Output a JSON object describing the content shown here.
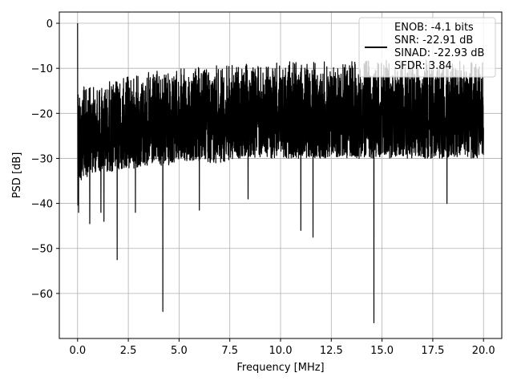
{
  "chart_data": {
    "type": "line",
    "title": "",
    "xlabel": "Frequency [MHz]",
    "ylabel": "PSD [dB]",
    "xlim": [
      -0.9,
      20.9
    ],
    "ylim": [
      -70,
      2.5
    ],
    "xticks": [
      0,
      2.5,
      5,
      7.5,
      10,
      12.5,
      15,
      17.5,
      20
    ],
    "xtick_labels": [
      "0.0",
      "2.5",
      "5.0",
      "7.5",
      "10.0",
      "12.5",
      "15.0",
      "17.5",
      "20.0"
    ],
    "yticks": [
      0,
      -10,
      -20,
      -30,
      -40,
      -50,
      -60
    ],
    "ytick_labels": [
      "0",
      "−10",
      "−20",
      "−30",
      "−40",
      "−50",
      "−60"
    ],
    "grid": true,
    "legend_position": "top-right",
    "legend_lines": [
      "ENOB: -4.1 bits",
      "SNR: -22.91 dB",
      "SINAD: -22.93 dB",
      "SFDR: 3.84"
    ],
    "series": [
      {
        "color": "#000000",
        "envelope": {
          "x": [
            0,
            0.02,
            0.05,
            0.1,
            0.2,
            0.5,
            1,
            2,
            3,
            4,
            5,
            6,
            7,
            8,
            9,
            10,
            11,
            12,
            13,
            14,
            15,
            16,
            17,
            18,
            19,
            20
          ],
          "upper": [
            0,
            -6,
            -10,
            -12,
            -13.5,
            -14,
            -13.5,
            -12,
            -11,
            -10.5,
            -10,
            -9.5,
            -9.2,
            -9,
            -8.8,
            -8.6,
            -8.4,
            -8.3,
            -8.2,
            -8.1,
            -8,
            -8,
            -8,
            -8,
            -8.3,
            -8.5
          ],
          "lower": [
            -42,
            -40,
            -38,
            -36,
            -35,
            -34,
            -33,
            -33,
            -32,
            -32,
            -31,
            -31,
            -31,
            -30,
            -30,
            -30,
            -30,
            -30,
            -30,
            -30,
            -30,
            -30,
            -30,
            -30,
            -30,
            -30
          ]
        },
        "notable_dips": [
          {
            "x": 0.05,
            "y": -42
          },
          {
            "x": 0.6,
            "y": -44.5
          },
          {
            "x": 1.15,
            "y": -42
          },
          {
            "x": 1.3,
            "y": -44
          },
          {
            "x": 1.95,
            "y": -52.5
          },
          {
            "x": 2.85,
            "y": -42
          },
          {
            "x": 4.2,
            "y": -64
          },
          {
            "x": 6.0,
            "y": -41.5
          },
          {
            "x": 8.4,
            "y": -39
          },
          {
            "x": 11.0,
            "y": -46
          },
          {
            "x": 11.6,
            "y": -47.5
          },
          {
            "x": 14.6,
            "y": -66.5
          },
          {
            "x": 18.2,
            "y": -40
          }
        ]
      }
    ]
  }
}
